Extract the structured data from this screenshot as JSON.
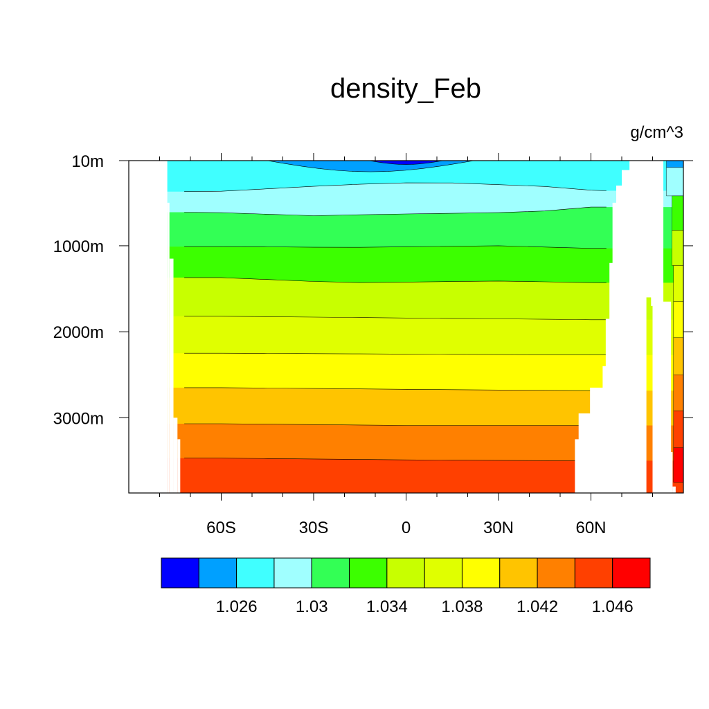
{
  "chart_data": {
    "type": "heatmap",
    "title": "density_Feb",
    "units": "g/cm^3",
    "xlabel": "",
    "ylabel": "",
    "x_ticks": [
      {
        "value": -60,
        "label": "60S"
      },
      {
        "value": -30,
        "label": "30S"
      },
      {
        "value": 0,
        "label": "0"
      },
      {
        "value": 30,
        "label": "30N"
      },
      {
        "value": 60,
        "label": "60N"
      }
    ],
    "x_minor_ticks": [
      -80,
      -70,
      -50,
      -40,
      -20,
      -10,
      10,
      20,
      40,
      50,
      70,
      80
    ],
    "xlim": [
      -90,
      90
    ],
    "y_ticks": [
      {
        "value": 10,
        "label": "10m"
      },
      {
        "value": 1000,
        "label": "1000m"
      },
      {
        "value": 2000,
        "label": "2000m"
      },
      {
        "value": 3000,
        "label": "3000m"
      }
    ],
    "ylim": [
      10,
      3875
    ],
    "y_reversed": true,
    "levels": [
      1.024,
      1.026,
      1.028,
      1.03,
      1.032,
      1.034,
      1.036,
      1.038,
      1.04,
      1.042,
      1.044,
      1.046
    ],
    "fill_colors": [
      "#0000ff",
      "#00a0ff",
      "#40ffff",
      "#a0ffff",
      "#33ff55",
      "#3cff00",
      "#c8ff00",
      "#e0ff00",
      "#ffff00",
      "#ffc400",
      "#ff8000",
      "#ff4000",
      "#ff0000"
    ],
    "colorbar_labels": [
      {
        "level": 1.026,
        "label": "1.026"
      },
      {
        "level": 1.03,
        "label": "1.03"
      },
      {
        "level": 1.034,
        "label": "1.034"
      },
      {
        "level": 1.038,
        "label": "1.038"
      },
      {
        "level": 1.042,
        "label": "1.042"
      },
      {
        "level": 1.046,
        "label": "1.046"
      }
    ],
    "contour_depths_at_equator": [
      {
        "level": 1.028,
        "depth": 330
      },
      {
        "level": 1.03,
        "depth": 630
      },
      {
        "level": 1.032,
        "depth": 1000
      },
      {
        "level": 1.034,
        "depth": 1410
      },
      {
        "level": 1.036,
        "depth": 1840
      },
      {
        "level": 1.038,
        "depth": 2260
      },
      {
        "level": 1.04,
        "depth": 2670
      },
      {
        "level": 1.042,
        "depth": 3090
      },
      {
        "level": 1.044,
        "depth": 3490
      }
    ],
    "grid": false,
    "legend": "bottom colorbar"
  }
}
